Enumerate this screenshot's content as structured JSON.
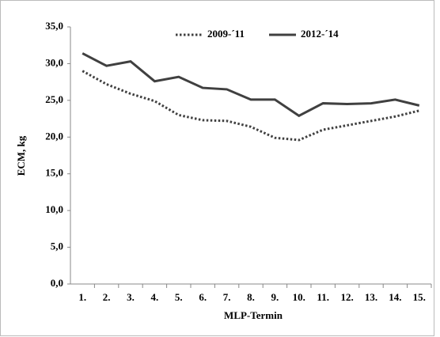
{
  "chart_data": {
    "type": "line",
    "x_label": "MLP-Termin",
    "y_label": "ECM, kg",
    "categories": [
      "1.",
      "2.",
      "3.",
      "4.",
      "5.",
      "6.",
      "7.",
      "8.",
      "9.",
      "10.",
      "11.",
      "12.",
      "13.",
      "14.",
      "15."
    ],
    "series": [
      {
        "name": "2009-´11",
        "color": "#404040",
        "dash": "dotted",
        "values": [
          29.0,
          27.2,
          25.9,
          24.9,
          23.0,
          22.3,
          22.2,
          21.4,
          19.9,
          19.6,
          21.0,
          21.6,
          22.2,
          22.8,
          23.6
        ]
      },
      {
        "name": "2012-´14",
        "color": "#404040",
        "dash": "solid",
        "values": [
          31.4,
          29.7,
          30.3,
          27.6,
          28.2,
          26.7,
          26.5,
          25.1,
          25.1,
          22.9,
          24.6,
          24.5,
          24.6,
          25.1,
          24.3
        ]
      }
    ],
    "ylim": [
      0,
      35
    ],
    "yticks": [
      {
        "value": 0,
        "label": "0,0"
      },
      {
        "value": 5,
        "label": "5,0"
      },
      {
        "value": 10,
        "label": "10,0"
      },
      {
        "value": 15,
        "label": "15,0"
      },
      {
        "value": 20,
        "label": "20,0"
      },
      {
        "value": 25,
        "label": "25,0"
      },
      {
        "value": 30,
        "label": "30,0"
      },
      {
        "value": 35,
        "label": "35,0"
      }
    ],
    "grid": false,
    "legend": "top"
  }
}
